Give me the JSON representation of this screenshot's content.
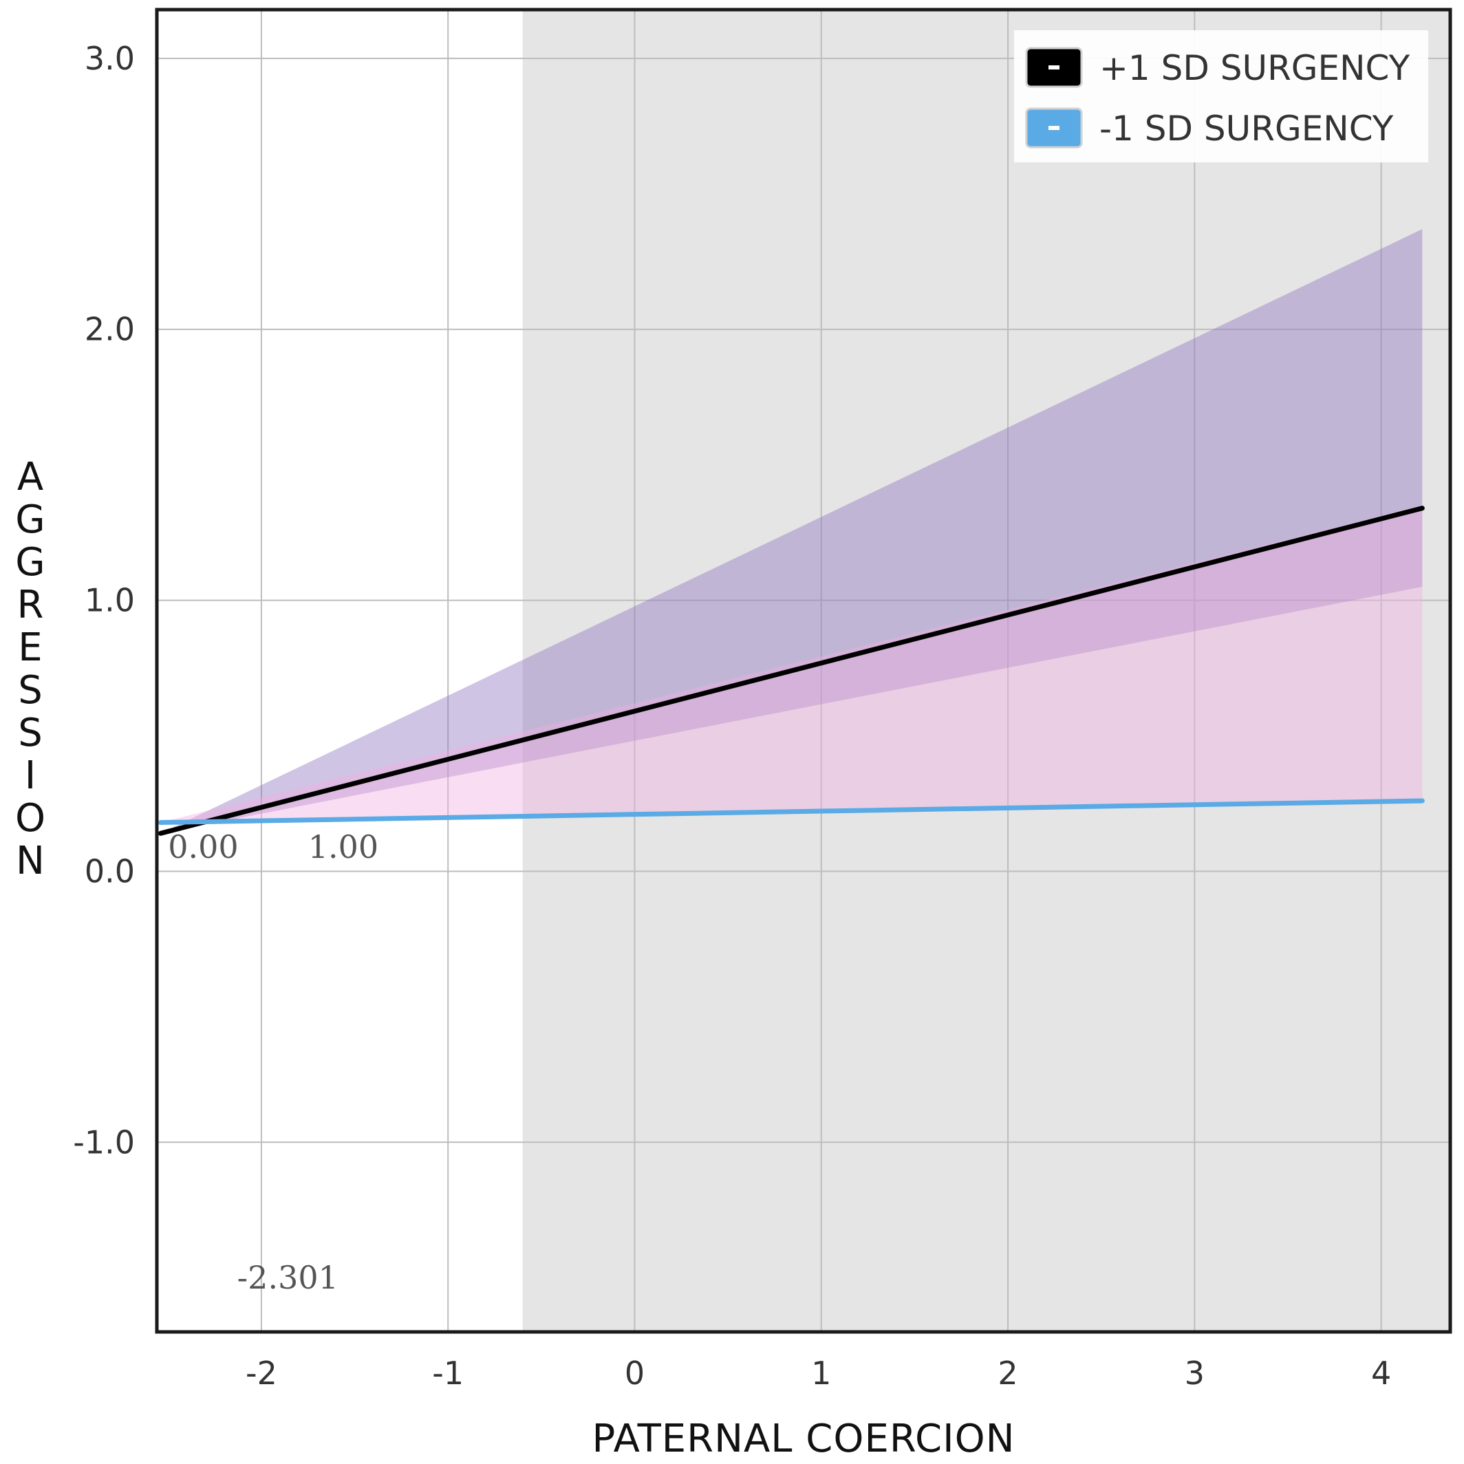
{
  "chart_data": {
    "type": "line",
    "title": "",
    "xlabel": "PATERNAL COERCION",
    "ylabel": "AGGRESSION",
    "xlim": [
      -2.56,
      4.37
    ],
    "ylim": [
      -1.7,
      3.18
    ],
    "xticks": [
      "-2",
      "-1",
      "0",
      "1",
      "2",
      "3",
      "4"
    ],
    "yticks": [
      "3.0",
      "2.0",
      "1.0",
      "0.0",
      "-1.0"
    ],
    "grid": true,
    "legend_position": "top-right",
    "shaded_region": {
      "x_from": -0.6,
      "x_to": 4.37,
      "color": "#e5e5e5"
    },
    "series": [
      {
        "name": "+1 SD SURGENCY",
        "color": "#000000",
        "x": [
          -2.54,
          4.22
        ],
        "y": [
          0.14,
          1.34
        ],
        "ci_lower": [
          0.14,
          1.05
        ],
        "ci_upper": [
          0.14,
          2.37
        ],
        "band_color": "#8f72bf"
      },
      {
        "name": "-1 SD SURGENCY",
        "color": "#5aaae6",
        "x": [
          -2.54,
          4.22
        ],
        "y": [
          0.18,
          0.26
        ],
        "ci_lower": [
          0.18,
          0.25
        ],
        "ci_upper": [
          0.18,
          1.35
        ],
        "band_color": "#f0aee0"
      }
    ],
    "annotations": [
      {
        "text": "0.00",
        "x": -2.5,
        "y": 0.09
      },
      {
        "text": "1.00",
        "x": -1.75,
        "y": 0.09
      },
      {
        "text": "-2.301",
        "x": -2.13,
        "y": -1.5
      }
    ]
  }
}
